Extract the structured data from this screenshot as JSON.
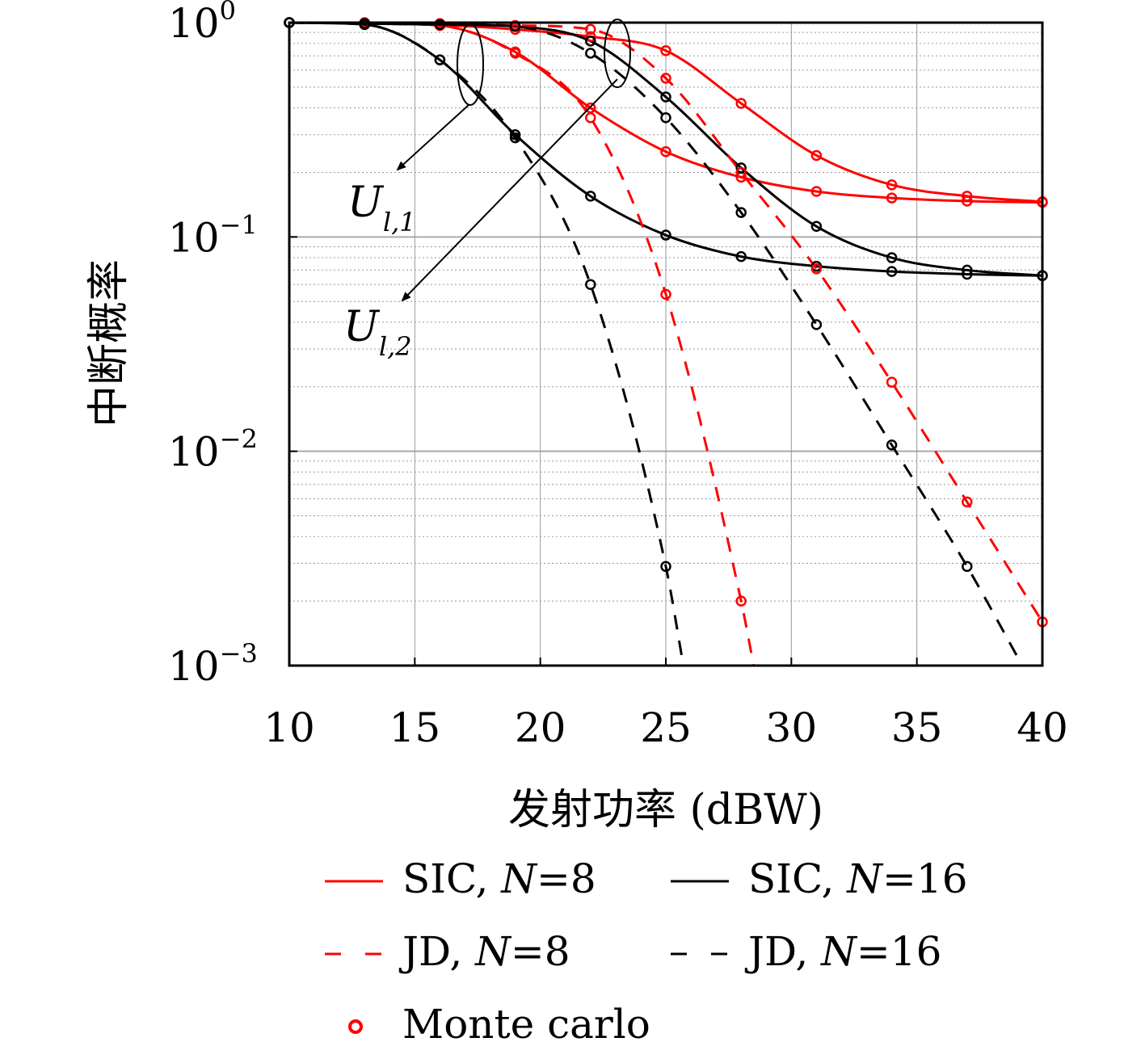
{
  "chart_data": {
    "type": "line",
    "xlabel": "发射功率 (dBW)",
    "ylabel": "中断概率",
    "x_scale": "linear",
    "y_scale": "log",
    "xlim": [
      10,
      40
    ],
    "ylim": [
      0.001,
      1
    ],
    "x_ticks": [
      "10",
      "15",
      "20",
      "25",
      "30",
      "35",
      "40"
    ],
    "y_ticks": [
      {
        "base": "10",
        "exp": "0"
      },
      {
        "base": "10",
        "exp": "−1"
      },
      {
        "base": "10",
        "exp": "−2"
      },
      {
        "base": "10",
        "exp": "−3"
      }
    ],
    "grid": true,
    "legend_placement": "below",
    "colors": {
      "red": "#ff0000",
      "black": "#000000"
    },
    "legend": [
      {
        "label": "SIC, ",
        "italic": "N",
        "suffix": "=8",
        "color": "#ff0000",
        "dash": "solid"
      },
      {
        "label": "SIC, ",
        "italic": "N",
        "suffix": "=16",
        "color": "#000000",
        "dash": "solid"
      },
      {
        "label": "JD, ",
        "italic": "N",
        "suffix": "=8",
        "color": "#ff0000",
        "dash": "dashed"
      },
      {
        "label": "JD, ",
        "italic": "N",
        "suffix": "=16",
        "color": "#000000",
        "dash": "dashed"
      },
      {
        "label": "Monte carlo",
        "italic": "",
        "suffix": "",
        "color": "#ff0000",
        "dash": "marker"
      }
    ],
    "annotations": [
      {
        "main": "U",
        "sub": "l,1"
      },
      {
        "main": "U",
        "sub": "l,2"
      }
    ],
    "series": [
      {
        "group": "SIC, N=8",
        "color": "#ff0000",
        "dash": "solid",
        "x": [
          10,
          13,
          16,
          19,
          22,
          25,
          28,
          31,
          34,
          37,
          40
        ],
        "y": [
          1.0,
          0.995,
          0.975,
          0.93,
          0.86,
          0.74,
          0.42,
          0.24,
          0.175,
          0.155,
          0.146
        ],
        "markers": [
          10,
          13,
          16,
          19,
          22,
          25,
          28,
          31,
          34,
          37,
          40
        ]
      },
      {
        "group": "SIC, N=8",
        "color": "#ff0000",
        "dash": "solid",
        "x": [
          10,
          13,
          16,
          19,
          22,
          25,
          28,
          31,
          34,
          37,
          40
        ],
        "y": [
          1.0,
          0.995,
          0.97,
          0.73,
          0.4,
          0.25,
          0.19,
          0.163,
          0.152,
          0.147,
          0.145
        ],
        "markers": [
          10,
          13,
          16,
          19,
          22,
          25,
          28,
          31,
          34,
          37,
          40
        ]
      },
      {
        "group": "SIC, N=16",
        "color": "#000000",
        "dash": "solid",
        "x": [
          10,
          13,
          16,
          19,
          22,
          25,
          28,
          31,
          34,
          37,
          40
        ],
        "y": [
          1.0,
          0.99,
          0.98,
          0.96,
          0.82,
          0.45,
          0.21,
          0.112,
          0.08,
          0.07,
          0.066
        ],
        "markers": [
          10,
          13,
          16,
          19,
          22,
          25,
          28,
          31,
          34,
          37,
          40
        ]
      },
      {
        "group": "SIC, N=16",
        "color": "#000000",
        "dash": "solid",
        "x": [
          10,
          13,
          16,
          19,
          22,
          25,
          28,
          31,
          34,
          37,
          40
        ],
        "y": [
          1.0,
          0.98,
          0.67,
          0.3,
          0.155,
          0.102,
          0.081,
          0.073,
          0.069,
          0.067,
          0.066
        ],
        "markers": [
          10,
          13,
          16,
          19,
          22,
          25,
          28,
          31,
          34,
          37,
          40
        ]
      },
      {
        "group": "JD, N=8",
        "color": "#ff0000",
        "dash": "dashed",
        "x": [
          10,
          13,
          16,
          19,
          22,
          25,
          28,
          31,
          34,
          37,
          40
        ],
        "y": [
          1.0,
          1.0,
          0.99,
          0.97,
          0.93,
          0.55,
          0.2,
          0.071,
          0.021,
          0.0058,
          0.0016
        ],
        "markers": [
          10,
          13,
          16,
          19,
          22,
          25,
          28,
          31,
          34,
          37,
          40
        ]
      },
      {
        "group": "JD, N=8",
        "color": "#ff0000",
        "dash": "dashed",
        "x": [
          10,
          13,
          16,
          19,
          22,
          25,
          28,
          28.5
        ],
        "y": [
          1.0,
          0.995,
          0.97,
          0.72,
          0.36,
          0.054,
          0.002,
          0.001
        ],
        "markers": [
          10,
          13,
          16,
          19,
          22,
          25,
          28
        ]
      },
      {
        "group": "JD, N=16",
        "color": "#000000",
        "dash": "dashed",
        "x": [
          10,
          13,
          16,
          19,
          22,
          25,
          28,
          31,
          34,
          37,
          39.2
        ],
        "y": [
          1.0,
          0.99,
          0.98,
          0.96,
          0.72,
          0.36,
          0.13,
          0.039,
          0.0107,
          0.0029,
          0.001
        ],
        "markers": [
          10,
          13,
          16,
          19,
          22,
          25,
          28,
          31,
          34,
          37
        ]
      },
      {
        "group": "JD, N=16",
        "color": "#000000",
        "dash": "dashed",
        "x": [
          10,
          13,
          16,
          19,
          22,
          25,
          25.7
        ],
        "y": [
          1.0,
          0.98,
          0.67,
          0.29,
          0.06,
          0.0029,
          0.001
        ],
        "markers": [
          10,
          13,
          16,
          19,
          22,
          25
        ]
      }
    ]
  }
}
